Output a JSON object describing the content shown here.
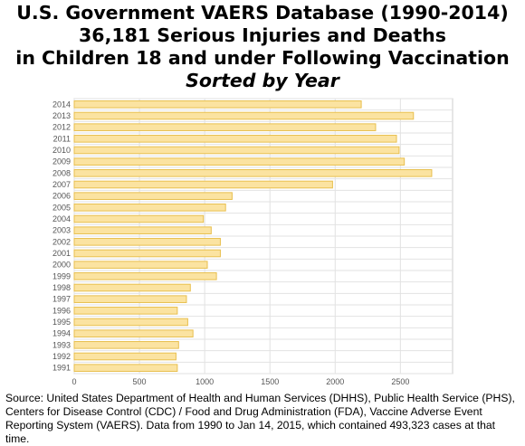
{
  "title_lines": [
    "U.S. Government VAERS Database (1990-2014)",
    "36,181 Serious Injuries and Deaths",
    "in Children 18 and under Following Vaccination",
    "Sorted by Year"
  ],
  "source": "Source: United States Department of Health and Human Services (DHHS), Public Health Service (PHS), Centers for Disease Control (CDC) / Food and Drug Administration (FDA), Vaccine Adverse Event Reporting System (VAERS). Data from 1990 to Jan 14, 2015, which contained 493,323 cases at that time.",
  "colors": {
    "bar_fill": "#fbe3a1",
    "bar_stroke": "#e8bf4e",
    "grid": "#e2e2e2"
  },
  "chart_data": {
    "type": "bar",
    "orientation": "horizontal",
    "categories": [
      "2014",
      "2013",
      "2012",
      "2011",
      "2010",
      "2009",
      "2008",
      "2007",
      "2006",
      "2005",
      "2004",
      "2003",
      "2002",
      "2001",
      "2000",
      "1999",
      "1998",
      "1997",
      "1996",
      "1995",
      "1994",
      "1993",
      "1992",
      "1991"
    ],
    "values": [
      2200,
      2600,
      2310,
      2470,
      2490,
      2530,
      2740,
      1980,
      1210,
      1160,
      990,
      1050,
      1120,
      1120,
      1020,
      1090,
      890,
      860,
      790,
      870,
      910,
      800,
      780,
      790
    ],
    "xticks": [
      0,
      500,
      1000,
      1500,
      2000,
      2500
    ],
    "xlim": [
      0,
      2900
    ],
    "grid": true,
    "legend": "none",
    "xlabel": "",
    "ylabel": ""
  }
}
